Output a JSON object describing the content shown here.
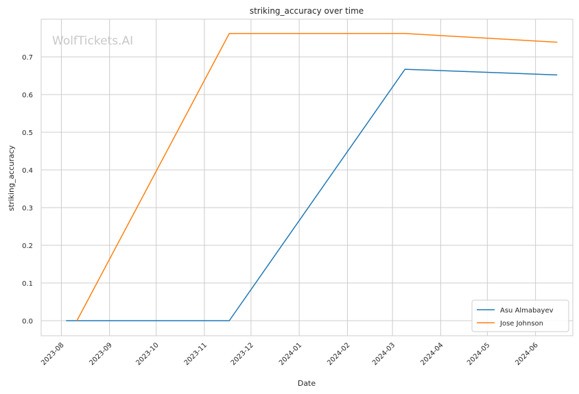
{
  "watermark": "WolfTickets.AI",
  "chart_data": {
    "type": "line",
    "title": "striking_accuracy over time",
    "xlabel": "Date",
    "ylabel": "striking_accuracy",
    "xlim": [
      "2023-07-19",
      "2024-06-25"
    ],
    "ylim": [
      -0.04,
      0.8
    ],
    "x_ticks": [
      "2023-08",
      "2023-09",
      "2023-10",
      "2023-11",
      "2023-12",
      "2024-01",
      "2024-02",
      "2024-03",
      "2024-04",
      "2024-05",
      "2024-06"
    ],
    "y_ticks": [
      "0.0",
      "0.1",
      "0.2",
      "0.3",
      "0.4",
      "0.5",
      "0.6",
      "0.7"
    ],
    "grid": true,
    "legend_position": "bottom-right",
    "series": [
      {
        "name": "Asu Almabayev",
        "color": "#1f77b4",
        "points": [
          {
            "x": "2023-08-04",
            "y": 0.0
          },
          {
            "x": "2023-11-17",
            "y": 0.0
          },
          {
            "x": "2024-03-09",
            "y": 0.667
          },
          {
            "x": "2024-06-15",
            "y": 0.652
          }
        ]
      },
      {
        "name": "Jose Johnson",
        "color": "#ff7f0e",
        "points": [
          {
            "x": "2023-08-11",
            "y": 0.0
          },
          {
            "x": "2023-11-17",
            "y": 0.762
          },
          {
            "x": "2024-03-09",
            "y": 0.762
          },
          {
            "x": "2024-06-15",
            "y": 0.739
          }
        ]
      }
    ]
  }
}
